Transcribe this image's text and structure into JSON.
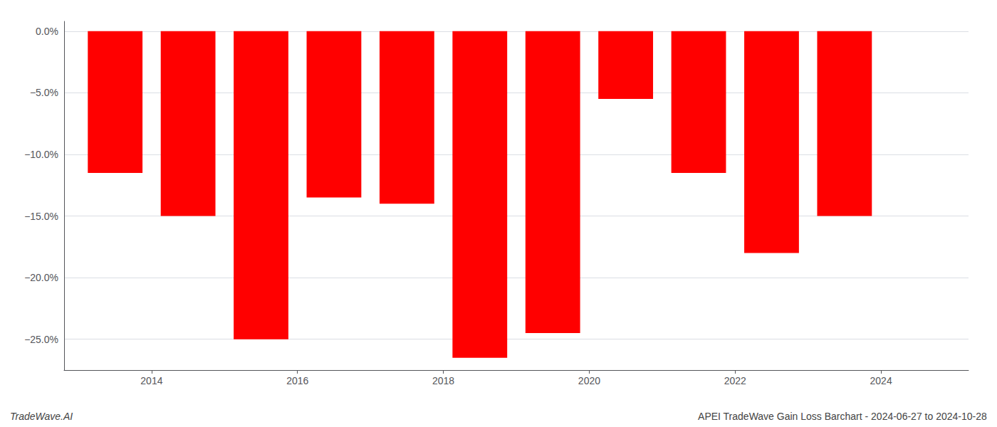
{
  "chart_data": {
    "type": "bar",
    "x": [
      2013.5,
      2014.5,
      2015.5,
      2016.5,
      2017.5,
      2018.5,
      2019.5,
      2020.5,
      2021.5,
      2022.5,
      2023.5
    ],
    "values": [
      -11.5,
      -15.0,
      -25.0,
      -13.5,
      -14.0,
      -26.5,
      -24.5,
      -5.5,
      -11.5,
      -18.0,
      -15.0
    ],
    "color": "#ff0000",
    "xlim": [
      2012.8,
      2025.2
    ],
    "xticks": [
      2014,
      2016,
      2018,
      2020,
      2022,
      2024
    ],
    "ylim": [
      -27.5,
      0.8
    ],
    "yticks": [
      {
        "value": 0.0,
        "label": "0.0%"
      },
      {
        "value": -5.0,
        "label": "−5.0%"
      },
      {
        "value": -10.0,
        "label": "−10.0%"
      },
      {
        "value": -15.0,
        "label": "−15.0%"
      },
      {
        "value": -20.0,
        "label": "−20.0%"
      },
      {
        "value": -25.0,
        "label": "−25.0%"
      }
    ],
    "grid": true,
    "annotations": [
      "TradeWave.AI",
      "APEI TradeWave Gain Loss Barchart - 2024-06-27 to 2024-10-28"
    ]
  }
}
